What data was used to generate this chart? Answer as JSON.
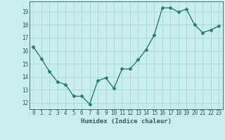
{
  "x": [
    0,
    1,
    2,
    3,
    4,
    5,
    6,
    7,
    8,
    9,
    10,
    11,
    12,
    13,
    14,
    15,
    16,
    17,
    18,
    19,
    20,
    21,
    22,
    23
  ],
  "y": [
    16.3,
    15.4,
    14.4,
    13.6,
    13.4,
    12.5,
    12.5,
    11.9,
    13.7,
    13.9,
    13.1,
    14.6,
    14.6,
    15.3,
    16.1,
    17.2,
    19.3,
    19.3,
    19.0,
    19.2,
    18.0,
    17.4,
    17.6,
    17.9
  ],
  "ylim": [
    11.5,
    19.8
  ],
  "xlim": [
    -0.5,
    23.5
  ],
  "yticks": [
    12,
    13,
    14,
    15,
    16,
    17,
    18,
    19
  ],
  "xticks": [
    0,
    1,
    2,
    3,
    4,
    5,
    6,
    7,
    8,
    9,
    10,
    11,
    12,
    13,
    14,
    15,
    16,
    17,
    18,
    19,
    20,
    21,
    22,
    23
  ],
  "xlabel": "Humidex (Indice chaleur)",
  "line_color": "#2d7d6e",
  "marker": "D",
  "marker_size": 2.5,
  "bg_color": "#c8eeee",
  "grid_color": "#aadddd",
  "text_color": "#2d6060",
  "font_family": "monospace",
  "tick_fontsize": 5.5,
  "xlabel_fontsize": 6.5,
  "linewidth": 1.0
}
